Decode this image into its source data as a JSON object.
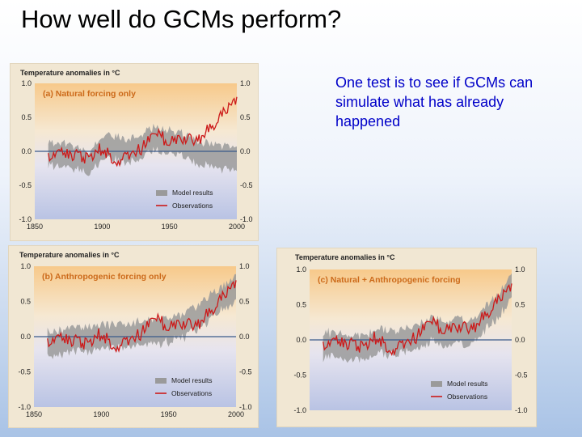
{
  "slide": {
    "title": "How well do GCMs perform?",
    "text": "One test is to see if GCMs can simulate what has already happened"
  },
  "colors": {
    "observations": "#cc1a1a",
    "model": "#9a9a9a",
    "zero_line": "#3a5a8a",
    "panel_label": "#cc6a1a",
    "slide_text": "#0000c8"
  },
  "chart_data": [
    {
      "type": "line",
      "title": "Temperature anomalies in °C",
      "subtitle": "(a) Natural forcing only",
      "ylim": [
        -1.0,
        1.0
      ],
      "xlim": [
        1850,
        2000
      ],
      "yticks": [
        "1.0",
        "0.5",
        "0.0",
        "-0.5",
        "-1.0"
      ],
      "xticks": [
        "1850",
        "1900",
        "1950",
        "2000"
      ],
      "legend": [
        "Model results",
        "Observations"
      ],
      "legend_position": "bottom-right",
      "x": [
        1860,
        1870,
        1880,
        1890,
        1900,
        1910,
        1920,
        1930,
        1940,
        1950,
        1960,
        1970,
        1980,
        1990,
        2000
      ],
      "series": [
        {
          "name": "Observations",
          "values": [
            -0.05,
            0.0,
            -0.05,
            -0.1,
            0.05,
            -0.15,
            -0.05,
            0.05,
            0.25,
            0.15,
            0.2,
            0.15,
            0.35,
            0.55,
            0.8
          ]
        },
        {
          "name": "Model results",
          "values": [
            -0.05,
            -0.05,
            -0.1,
            -0.15,
            0.05,
            0.05,
            0.0,
            0.1,
            0.2,
            0.15,
            0.1,
            0.0,
            -0.05,
            -0.1,
            -0.05
          ],
          "band": 0.15
        }
      ]
    },
    {
      "type": "line",
      "title": "Temperature anomalies in °C",
      "subtitle": "(b) Anthropogenic forcing only",
      "ylim": [
        -1.0,
        1.0
      ],
      "xlim": [
        1850,
        2000
      ],
      "yticks": [
        "1.0",
        "0.5",
        "0.0",
        "-0.5",
        "-1.0"
      ],
      "xticks": [
        "1850",
        "1900",
        "1950",
        "2000"
      ],
      "legend": [
        "Model results",
        "Observations"
      ],
      "legend_position": "bottom-right",
      "x": [
        1860,
        1870,
        1880,
        1890,
        1900,
        1910,
        1920,
        1930,
        1940,
        1950,
        1960,
        1970,
        1980,
        1990,
        2000
      ],
      "series": [
        {
          "name": "Observations",
          "values": [
            -0.05,
            0.0,
            -0.05,
            -0.1,
            0.05,
            -0.15,
            -0.05,
            0.05,
            0.25,
            0.15,
            0.2,
            0.15,
            0.35,
            0.55,
            0.8
          ]
        },
        {
          "name": "Model results",
          "values": [
            -0.1,
            -0.08,
            -0.05,
            -0.05,
            0.0,
            0.0,
            0.02,
            0.05,
            0.05,
            0.1,
            0.15,
            0.25,
            0.4,
            0.55,
            0.7
          ],
          "band": 0.15
        }
      ]
    },
    {
      "type": "line",
      "title": "Temperature anomalies in °C",
      "subtitle": "(c) Natural + Anthropogenic forcing",
      "ylim": [
        -1.0,
        1.0
      ],
      "xlim": [
        1850,
        2000
      ],
      "yticks": [
        "1.0",
        "0.5",
        "0.0",
        "-0.5",
        "-1.0"
      ],
      "xticks": [],
      "legend": [
        "Model results",
        "Observations"
      ],
      "legend_position": "bottom-right",
      "x": [
        1860,
        1870,
        1880,
        1890,
        1900,
        1910,
        1920,
        1930,
        1940,
        1950,
        1960,
        1970,
        1980,
        1990,
        2000
      ],
      "series": [
        {
          "name": "Observations",
          "values": [
            -0.05,
            0.0,
            -0.05,
            -0.1,
            0.05,
            -0.15,
            -0.05,
            0.05,
            0.25,
            0.15,
            0.2,
            0.15,
            0.35,
            0.55,
            0.8
          ]
        },
        {
          "name": "Model results",
          "values": [
            -0.08,
            -0.05,
            -0.1,
            -0.12,
            0.0,
            -0.05,
            -0.02,
            0.05,
            0.15,
            0.12,
            0.12,
            0.1,
            0.3,
            0.5,
            0.75
          ],
          "band": 0.15
        }
      ]
    }
  ]
}
